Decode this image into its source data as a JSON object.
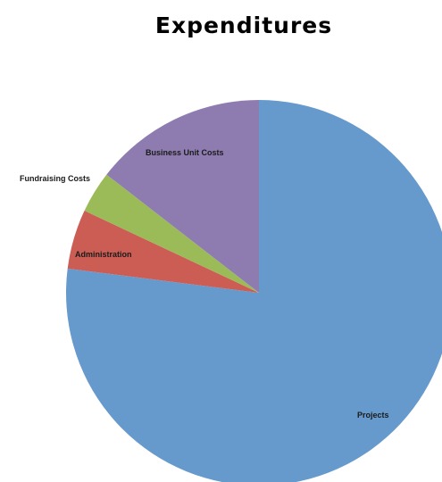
{
  "chart_data": {
    "type": "pie",
    "title": "Expenditures",
    "slices": [
      {
        "label": "Projects",
        "value": 77.0,
        "color": "#6699CC"
      },
      {
        "label": "Administration",
        "value": 5.0,
        "color": "#CC5D55"
      },
      {
        "label": "Fundraising Costs",
        "value": 3.5,
        "color": "#9BBB59"
      },
      {
        "label": "Business Unit Costs",
        "value": 14.5,
        "color": "#8E7CB0"
      }
    ],
    "legend": "none",
    "start_angle_deg": 0,
    "direction": "clockwise"
  }
}
